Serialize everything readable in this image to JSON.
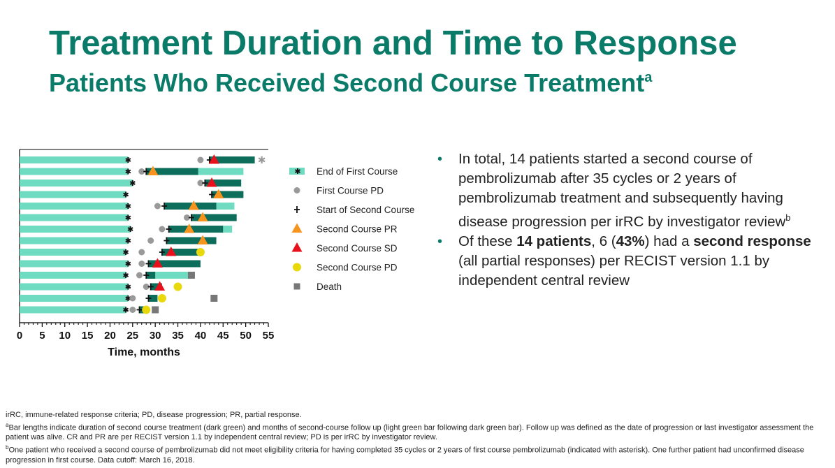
{
  "header": {
    "title": "Treatment Duration and Time to Response",
    "subtitle": "Patients Who Received Second Course Treatment",
    "subtitle_sup": "a"
  },
  "colors": {
    "title": "#0b7b69",
    "light_bar": "#6fdbc0",
    "dark_bar": "#0e6e5c",
    "first_pd": "#999999",
    "pr": "#f7941d",
    "sd": "#e8101a",
    "second_pd": "#e8d80c",
    "death": "#777777"
  },
  "chart_data": {
    "type": "swimmer",
    "xlabel": "Time, months",
    "xlim": [
      0,
      55
    ],
    "x_ticks": [
      0,
      5,
      10,
      15,
      20,
      25,
      30,
      35,
      40,
      45,
      50,
      55
    ],
    "legend": [
      {
        "label": "End of First Course",
        "marker": "bar-star"
      },
      {
        "label": "First Course PD",
        "marker": "circle-gray"
      },
      {
        "label": "Start of Second Course",
        "marker": "plus"
      },
      {
        "label": "Second Course PR",
        "marker": "triangle-orange"
      },
      {
        "label": "Second Course SD",
        "marker": "triangle-red"
      },
      {
        "label": "Second Course PD",
        "marker": "circle-yellow"
      },
      {
        "label": "Death",
        "marker": "square-gray"
      }
    ],
    "patients": [
      {
        "end_first": 24,
        "first_pd": 40,
        "start_second": 42,
        "second_end": 52,
        "followup_end": 52,
        "response": "SD",
        "response_time": 43,
        "asterisk": true
      },
      {
        "end_first": 24,
        "first_pd": 27,
        "start_second": 28,
        "second_end": 39.5,
        "followup_end": 49.5,
        "response": "PR",
        "response_time": 29.5
      },
      {
        "end_first": 25,
        "first_pd": 40,
        "start_second": 41,
        "second_end": 49,
        "followup_end": 49,
        "response": "SD",
        "response_time": 42.5
      },
      {
        "end_first": 23.5,
        "start_second": 42.5,
        "second_end": 49.5,
        "followup_end": 49.5,
        "response": "PR",
        "response_time": 44
      },
      {
        "end_first": 24,
        "first_pd": 30.5,
        "start_second": 32,
        "second_end": 43.5,
        "followup_end": 47.5,
        "response": "PR",
        "response_time": 38.5
      },
      {
        "end_first": 24,
        "first_pd": 37,
        "start_second": 38,
        "second_end": 48,
        "followup_end": 48,
        "response": "PR",
        "response_time": 40.5
      },
      {
        "end_first": 24.5,
        "first_pd": 31.5,
        "start_second": 33,
        "second_end": 45,
        "followup_end": 47,
        "response": "PR",
        "response_time": 37.5
      },
      {
        "end_first": 24,
        "first_pd": 29,
        "start_second": 32.5,
        "second_end": 43.5,
        "followup_end": 43.5,
        "response": "PR",
        "response_time": 40.5
      },
      {
        "end_first": 23.5,
        "first_pd": 27,
        "start_second": 31.5,
        "second_end": 39.5,
        "followup_end": 39.5,
        "response": "SD",
        "response_time": 33.5,
        "second_pd": 40
      },
      {
        "end_first": 24,
        "first_pd": 27,
        "start_second": 28.5,
        "second_end": 40,
        "followup_end": 40,
        "response": "SD",
        "response_time": 30.5
      },
      {
        "end_first": 23.5,
        "first_pd": 26.5,
        "start_second": 28,
        "second_end": 30,
        "followup_end": 37.5,
        "death": 38
      },
      {
        "end_first": 24,
        "first_pd": 28,
        "start_second": 29,
        "second_end": 31.5,
        "followup_end": 31.5,
        "response": "SD",
        "response_time": 31,
        "second_pd": 35
      },
      {
        "end_first": 24,
        "first_pd": 25,
        "start_second": 28.5,
        "second_end": 30.5,
        "followup_end": 30.5,
        "second_pd": 31.5,
        "death": 43
      },
      {
        "end_first": 23.5,
        "first_pd": 25,
        "start_second": 26.5,
        "second_end": 27.5,
        "followup_end": 27.5,
        "second_pd": 28,
        "death": 30
      }
    ]
  },
  "bullets": [
    {
      "parts": [
        {
          "text": "In total, 14 patients started a second course of pembrolizumab after 35 cycles or 2 years of pembrolizumab treatment and subsequently having disease progression per irRC by investigator review",
          "bold": false
        }
      ],
      "sup": "b"
    },
    {
      "parts": [
        {
          "text": "Of these ",
          "bold": false
        },
        {
          "text": "14 patients",
          "bold": true
        },
        {
          "text": ", 6 (",
          "bold": false
        },
        {
          "text": "43%",
          "bold": true
        },
        {
          "text": ") had a ",
          "bold": false
        },
        {
          "text": "second response",
          "bold": true
        },
        {
          "text": " (all partial responses) per RECIST version 1.1 by independent central review",
          "bold": false
        }
      ],
      "sup": ""
    }
  ],
  "footnotes": {
    "abbrev": "irRC, immune-related response criteria; PD, disease progression; PR, partial response.",
    "a_mark": "a",
    "a_text": "Bar lengths indicate duration of second course treatment (dark green) and months of second-course follow up (light green bar following dark green bar). Follow up was defined as the date of progression or last investigator assessment the patient was alive. CR and PR are per RECIST version 1.1 by independent central review; PD is per irRC by investigator review.",
    "b_mark": "b",
    "b_text": "One patient who received a second course of pembrolizumab did not meet eligibility criteria for having completed 35 cycles or 2 years of first course pembrolizumab (indicated with asterisk). One further patient had unconfirmed disease progression in first course.  Data cutoff: March 16, 2018."
  }
}
